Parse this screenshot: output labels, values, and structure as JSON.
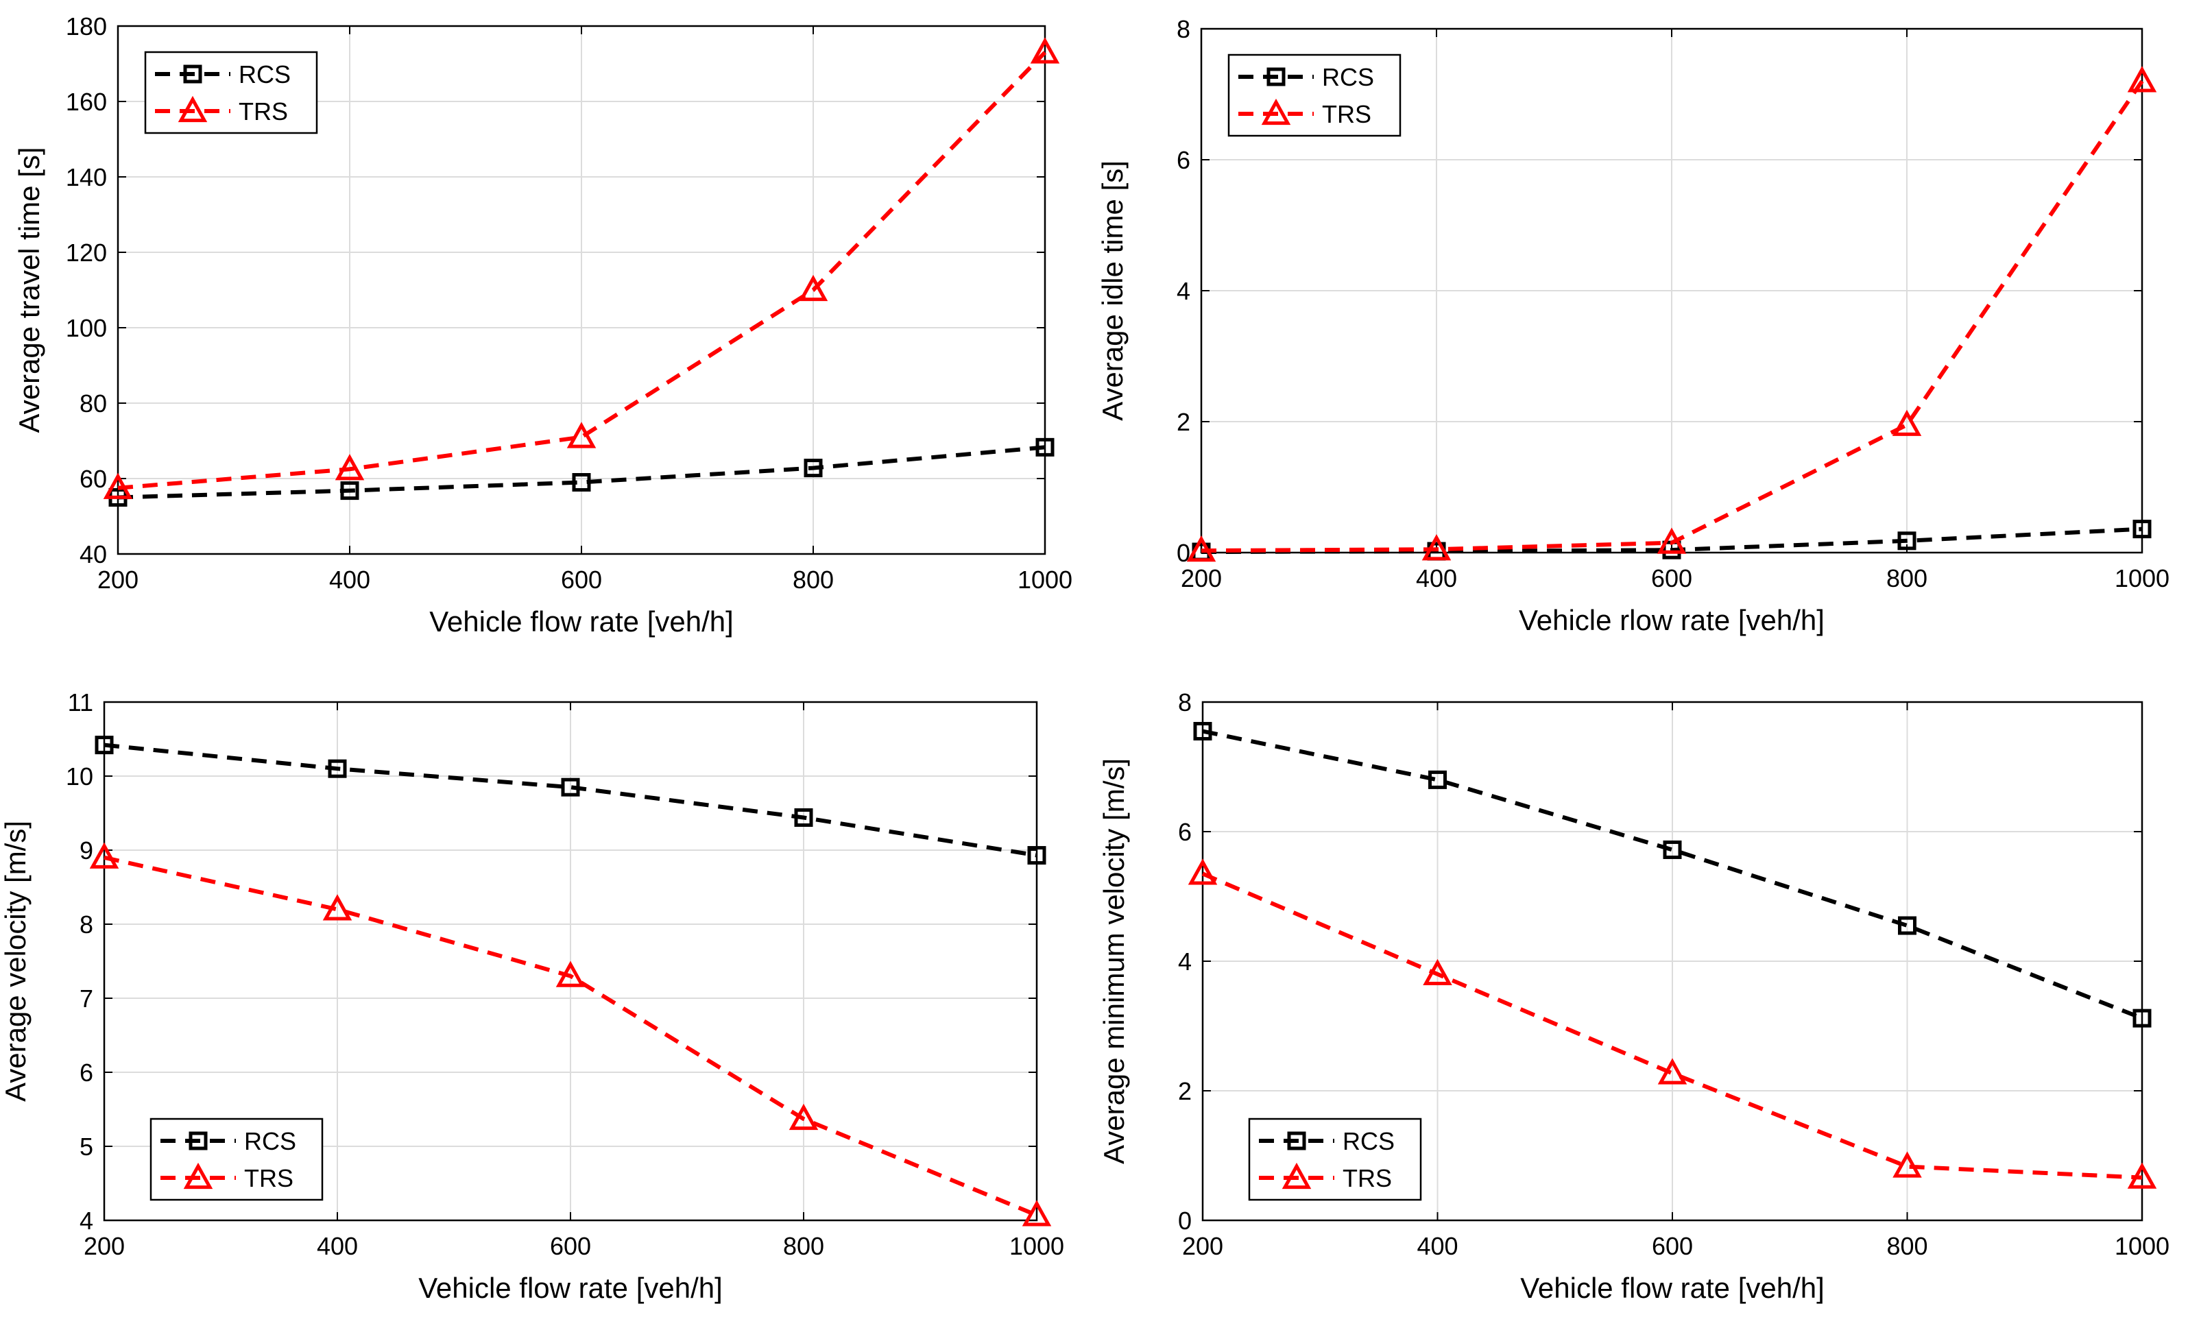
{
  "colors": {
    "rcs": "#000000",
    "trs": "#ff0000"
  },
  "chart_data": [
    {
      "id": "travel",
      "type": "line",
      "title": "",
      "xlabel": "Vehicle flow rate [veh/h]",
      "ylabel": "Average travel time [s]",
      "x": [
        200,
        400,
        600,
        800,
        1000
      ],
      "xlim": [
        200,
        1000
      ],
      "xticks": [
        200,
        400,
        600,
        800,
        1000
      ],
      "ylim": [
        40,
        180
      ],
      "yticks": [
        40,
        60,
        80,
        100,
        120,
        140,
        160,
        180
      ],
      "grid": true,
      "legend": "top-left",
      "series": [
        {
          "name": "RCS",
          "marker": "square",
          "values": [
            55,
            56.8,
            59,
            62.8,
            68.3
          ]
        },
        {
          "name": "TRS",
          "marker": "triangle",
          "values": [
            57.5,
            62.5,
            71,
            110,
            173
          ]
        }
      ]
    },
    {
      "id": "idle",
      "type": "line",
      "title": "",
      "xlabel": "Vehicle rlow rate [veh/h]",
      "ylabel": "Average idle time [s]",
      "x": [
        200,
        400,
        600,
        800,
        1000
      ],
      "xlim": [
        200,
        1000
      ],
      "xticks": [
        200,
        400,
        600,
        800,
        1000
      ],
      "ylim": [
        0,
        8
      ],
      "yticks": [
        0,
        2,
        4,
        6,
        8
      ],
      "grid": true,
      "legend": "top-left",
      "series": [
        {
          "name": "RCS",
          "marker": "square",
          "values": [
            0.01,
            0.02,
            0.04,
            0.18,
            0.36
          ]
        },
        {
          "name": "TRS",
          "marker": "triangle",
          "values": [
            0.03,
            0.05,
            0.15,
            1.95,
            7.2
          ]
        }
      ]
    },
    {
      "id": "velocity",
      "type": "line",
      "title": "",
      "xlabel": "Vehicle flow rate [veh/h]",
      "ylabel": "Average velocity [m/s]",
      "x": [
        200,
        400,
        600,
        800,
        1000
      ],
      "xlim": [
        200,
        1000
      ],
      "xticks": [
        200,
        400,
        600,
        800,
        1000
      ],
      "ylim": [
        4,
        11
      ],
      "yticks": [
        4,
        5,
        6,
        7,
        8,
        9,
        10,
        11
      ],
      "grid": true,
      "legend": "bottom-left",
      "series": [
        {
          "name": "RCS",
          "marker": "square",
          "values": [
            10.42,
            10.1,
            9.85,
            9.44,
            8.93
          ]
        },
        {
          "name": "TRS",
          "marker": "triangle",
          "values": [
            8.9,
            8.2,
            7.3,
            5.37,
            4.07
          ]
        }
      ]
    },
    {
      "id": "minvel",
      "type": "line",
      "title": "",
      "xlabel": "Vehicle flow rate [veh/h]",
      "ylabel": "Average minimum velocity [m/s]",
      "x": [
        200,
        400,
        600,
        800,
        1000
      ],
      "xlim": [
        200,
        1000
      ],
      "xticks": [
        200,
        400,
        600,
        800,
        1000
      ],
      "ylim": [
        0,
        8
      ],
      "yticks": [
        0,
        2,
        4,
        6,
        8
      ],
      "grid": true,
      "legend": "bottom-left",
      "series": [
        {
          "name": "RCS",
          "marker": "square",
          "values": [
            7.55,
            6.8,
            5.72,
            4.55,
            3.12
          ]
        },
        {
          "name": "TRS",
          "marker": "triangle",
          "values": [
            5.35,
            3.8,
            2.27,
            0.83,
            0.66
          ]
        }
      ]
    }
  ]
}
